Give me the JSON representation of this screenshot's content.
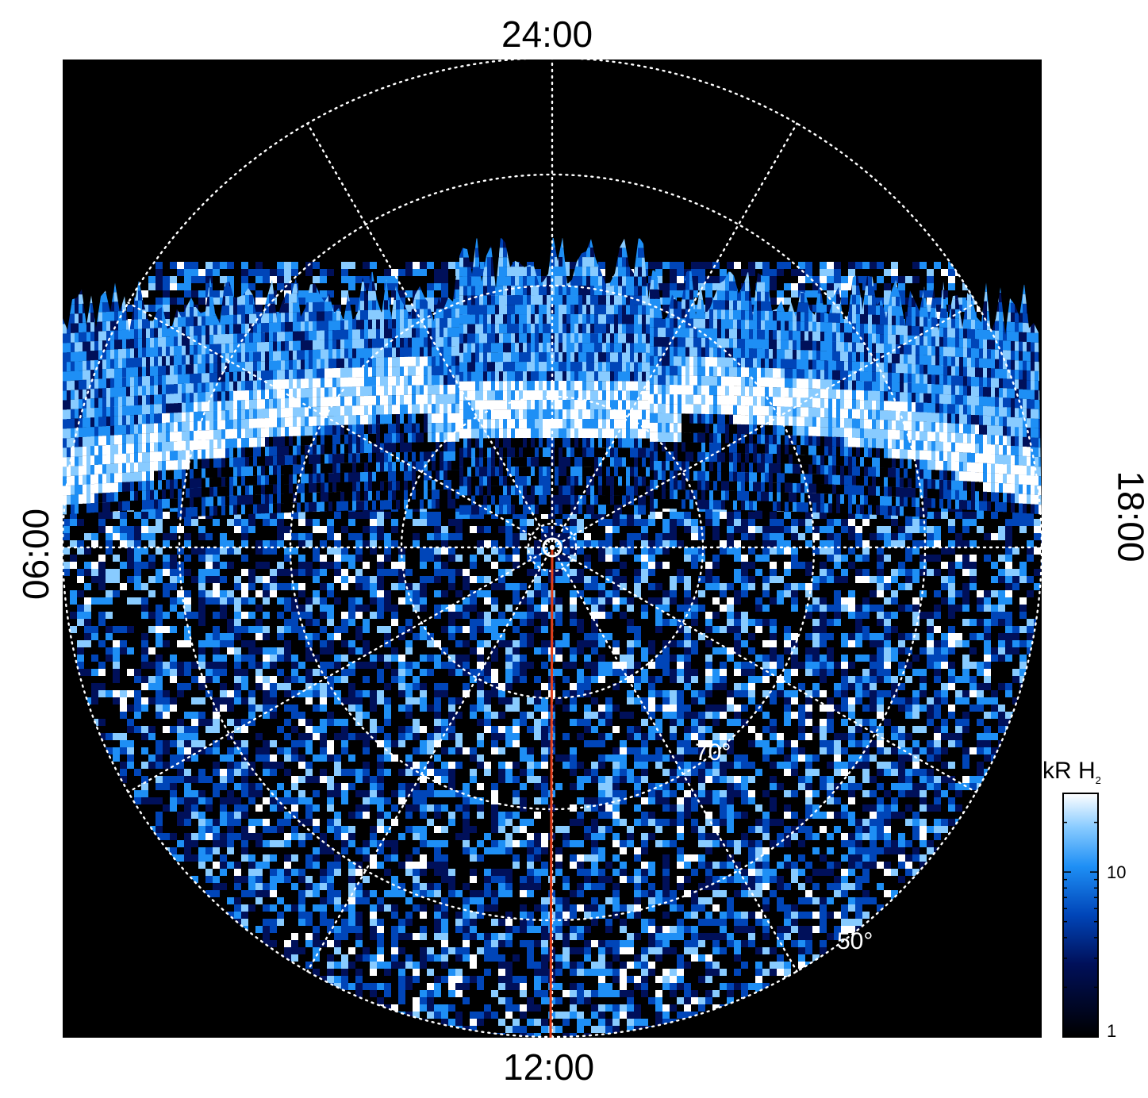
{
  "local_time_labels": {
    "top": "24:00",
    "bottom": "12:00",
    "left": "06:00",
    "right": "18:00"
  },
  "latitude_labels": [
    "70°",
    "50°"
  ],
  "colorbar": {
    "title_main": "kR H",
    "title_sub": "2",
    "ticks": [
      "10",
      "1"
    ],
    "range_kR": [
      1,
      30
    ],
    "scale": "log",
    "colors": [
      "#000000",
      "#00105a",
      "#0045b8",
      "#1e8ff5",
      "#88cbff",
      "#ffffff"
    ]
  },
  "colors": {
    "background": "#000000",
    "grid": "#ffffff",
    "meridian_line": "#e03e1a"
  },
  "grid": {
    "style": "dotted",
    "meridians_hours": 2
  }
}
